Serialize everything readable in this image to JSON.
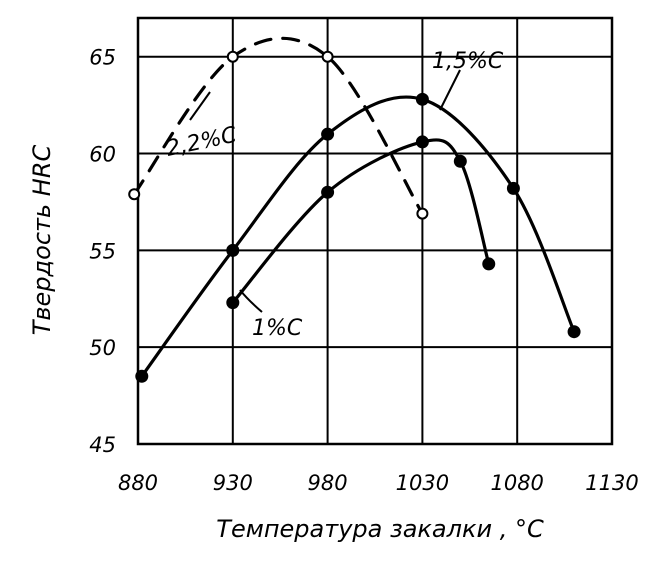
{
  "chart_data": {
    "type": "line",
    "xlabel": "Температура закалки , °C",
    "ylabel": "Твердость HRC",
    "xlim": [
      880,
      1130
    ],
    "ylim": [
      45,
      67
    ],
    "x_ticks": [
      "880",
      "930",
      "980",
      "1030",
      "1080",
      "1130"
    ],
    "y_ticks": [
      "45",
      "50",
      "55",
      "60",
      "65"
    ],
    "grid": true,
    "series": [
      {
        "name": "1,5%C",
        "style": "solid",
        "marker": "filled-circle",
        "points": [
          [
            882,
            48.5
          ],
          [
            930,
            55
          ],
          [
            980,
            61
          ],
          [
            1030,
            62.8
          ],
          [
            1078,
            58.2
          ],
          [
            1110,
            50.8
          ]
        ]
      },
      {
        "name": "1%C",
        "style": "solid",
        "marker": "filled-circle",
        "points": [
          [
            930,
            52.3
          ],
          [
            980,
            58
          ],
          [
            1030,
            60.6
          ],
          [
            1050,
            59.6
          ],
          [
            1065,
            54.3
          ]
        ]
      },
      {
        "name": "2,2%C",
        "style": "dashed",
        "marker": "open-circle",
        "points": [
          [
            878,
            57.9
          ],
          [
            930,
            65
          ],
          [
            980,
            65
          ],
          [
            1030,
            56.9
          ]
        ]
      }
    ]
  }
}
